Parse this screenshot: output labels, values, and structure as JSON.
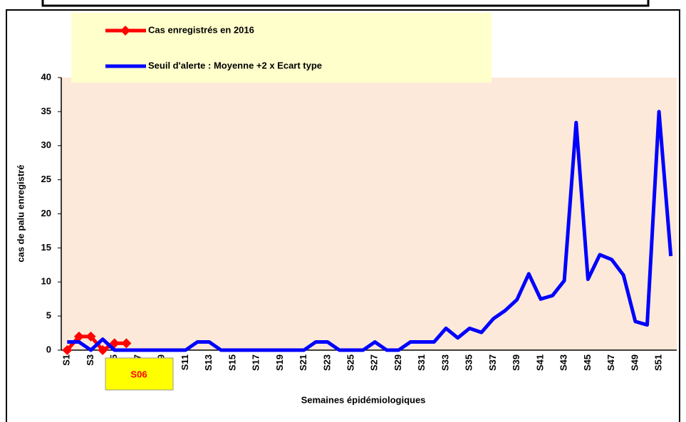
{
  "chart_data": {
    "type": "line",
    "x_label": "Semaines épidémiologiques",
    "y_label": "cas de palu enregistré",
    "categories": [
      "S1",
      null,
      "S3",
      null,
      "S5",
      null,
      "S7",
      null,
      "S9",
      null,
      "S11",
      null,
      "S13",
      null,
      "S15",
      null,
      "S17",
      null,
      "S19",
      null,
      "S21",
      null,
      "S23",
      null,
      "S25",
      null,
      "S27",
      null,
      "S29",
      null,
      "S31",
      null,
      "S33",
      null,
      "S35",
      null,
      "S37",
      null,
      "S39",
      null,
      "S41",
      null,
      "S43",
      null,
      "S45",
      null,
      "S47",
      null,
      "S49",
      null,
      "S51",
      null
    ],
    "series": [
      {
        "name": "Cas enregistrés en 2016",
        "color": "#ff0000",
        "marker": "diamond",
        "values": [
          0,
          2,
          2,
          0,
          1,
          1,
          null,
          null,
          null,
          null,
          null,
          null,
          null,
          null,
          null,
          null,
          null,
          null,
          null,
          null,
          null,
          null,
          null,
          null,
          null,
          null,
          null,
          null,
          null,
          null,
          null,
          null,
          null,
          null,
          null,
          null,
          null,
          null,
          null,
          null,
          null,
          null,
          null,
          null,
          null,
          null,
          null,
          null,
          null,
          null,
          null,
          null
        ]
      },
      {
        "name": "Seuil d'alerte : Moyenne +2 x Ecart type",
        "color": "#0000ff",
        "values": [
          1.2,
          1.2,
          0,
          1.6,
          0,
          0,
          0,
          0,
          0,
          0,
          0,
          1.2,
          1.2,
          0,
          0,
          0,
          0,
          0,
          0,
          0,
          0,
          1.2,
          1.2,
          0,
          0,
          0,
          1.2,
          0,
          0,
          1.2,
          1.2,
          1.2,
          3.2,
          1.8,
          3.2,
          2.6,
          4.6,
          5.8,
          7.4,
          11.2,
          7.5,
          8,
          10.2,
          33.4,
          10.4,
          14,
          13.3,
          11,
          4.2,
          3.7,
          35,
          13.8
        ]
      }
    ],
    "ylim": [
      0,
      40
    ],
    "yticks": [
      0,
      5,
      10,
      15,
      20,
      25,
      30,
      35,
      40
    ],
    "grid": false,
    "plot_background": "#fde9d9",
    "annotation": "S06"
  }
}
